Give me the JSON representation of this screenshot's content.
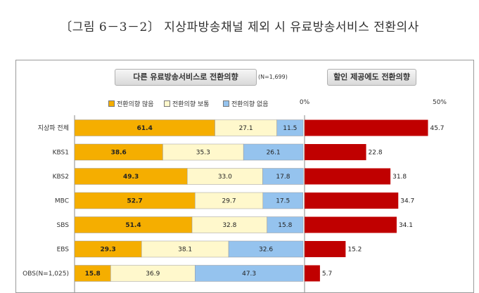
{
  "figure_title": "〔그림 6－3－2〕 지상파방송채널 제외 시 유료방송서비스 전환의사",
  "chart_data": [
    {
      "type": "bar",
      "stacked": true,
      "orientation": "horizontal",
      "title": "다른 유료방송서비스로 전환의향",
      "note": "(N=1,699)",
      "categories": [
        "지상파 전체",
        "KBS1",
        "KBS2",
        "MBC",
        "SBS",
        "EBS",
        "OBS(N=1,025)"
      ],
      "series": [
        {
          "name": "전환의향 많음",
          "color": "#f5ae00",
          "values": [
            61.4,
            38.6,
            49.3,
            52.7,
            51.4,
            29.3,
            15.8
          ]
        },
        {
          "name": "전환의향 보통",
          "color": "#fff8cc",
          "values": [
            27.1,
            35.3,
            33.0,
            29.7,
            32.8,
            38.1,
            36.9
          ]
        },
        {
          "name": "전환의향 없음",
          "color": "#95c3ee",
          "values": [
            11.5,
            26.1,
            17.8,
            17.5,
            15.8,
            32.6,
            47.3
          ]
        }
      ],
      "xlim": [
        0,
        100
      ]
    },
    {
      "type": "bar",
      "orientation": "horizontal",
      "title": "할인 제공에도 전환의향",
      "categories": [
        "지상파 전체",
        "KBS1",
        "KBS2",
        "MBC",
        "SBS",
        "EBS",
        "OBS(N=1,025)"
      ],
      "color": "#c00000",
      "values": [
        45.7,
        22.8,
        31.8,
        34.7,
        34.1,
        15.2,
        5.7
      ],
      "xlim": [
        0,
        50
      ],
      "tick_labels": [
        "0%",
        "50%"
      ]
    }
  ]
}
